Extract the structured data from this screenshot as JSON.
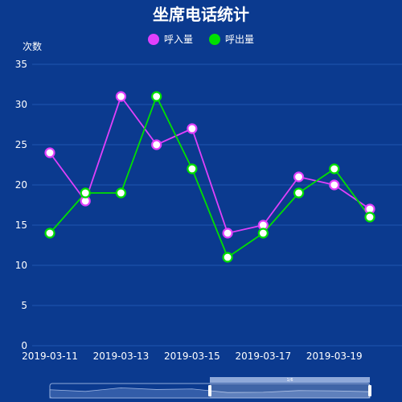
{
  "chart_data": {
    "type": "line",
    "title": "坐席电话统计",
    "ylabel": "次数",
    "xlabel": "",
    "ylim": [
      0,
      35
    ],
    "yticks": [
      0,
      5,
      10,
      15,
      20,
      25,
      30,
      35
    ],
    "x": [
      "2019-03-11",
      "2019-03-12",
      "2019-03-13",
      "2019-03-14",
      "2019-03-15",
      "2019-03-16",
      "2019-03-17",
      "2019-03-18",
      "2019-03-19",
      "2019-03-20"
    ],
    "xtick_labels": [
      "2019-03-11",
      "2019-03-13",
      "2019-03-15",
      "2019-03-17",
      "2019-03-19"
    ],
    "series": [
      {
        "name": "呼入量",
        "color": "#e040fb",
        "values": [
          24,
          18,
          31,
          25,
          27,
          14,
          15,
          21,
          20,
          17
        ]
      },
      {
        "name": "呼出量",
        "color": "#00e000",
        "values": [
          14,
          19,
          19,
          31,
          22,
          11,
          14,
          19,
          22,
          16
        ]
      }
    ],
    "grid": true,
    "legend_position": "top-center",
    "data_zoom": {
      "start_fraction": 0.5,
      "end_fraction": 1.0,
      "handle_label": "1/6"
    }
  },
  "colors": {
    "background": "#0b3a8f",
    "grid": "#1f56b0",
    "axis_text": "#ffffff"
  }
}
